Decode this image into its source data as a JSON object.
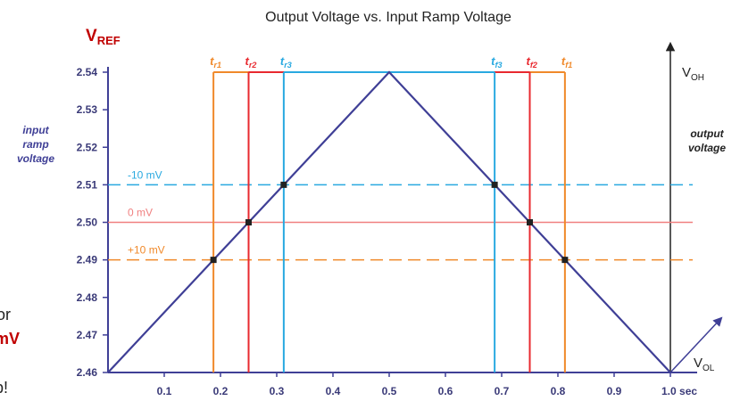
{
  "chart_data": {
    "type": "line",
    "title": "Output Voltage vs. Input Ramp Voltage",
    "vref_label": {
      "main": "V",
      "sub": "REF"
    },
    "input_axis_label": [
      "input",
      "ramp",
      "voltage"
    ],
    "output_axis_label": [
      "output",
      "voltage"
    ],
    "voh_label": {
      "main": "V",
      "sub": "OH"
    },
    "vol_label": {
      "main": "V",
      "sub": "OL"
    },
    "xlim": [
      0,
      1.0
    ],
    "ylim": [
      2.46,
      2.54
    ],
    "x_ticks": [
      {
        "value": 0.1,
        "label": "0.1"
      },
      {
        "value": 0.2,
        "label": "0.2"
      },
      {
        "value": 0.3,
        "label": "0.3"
      },
      {
        "value": 0.4,
        "label": "0.4"
      },
      {
        "value": 0.5,
        "label": "0.5"
      },
      {
        "value": 0.6,
        "label": "0.6"
      },
      {
        "value": 0.7,
        "label": "0.7"
      },
      {
        "value": 0.8,
        "label": "0.8"
      },
      {
        "value": 0.9,
        "label": "0.9"
      },
      {
        "value": 1.0,
        "label": "1.0 sec"
      }
    ],
    "y_ticks": [
      {
        "value": 2.46,
        "label": "2.46"
      },
      {
        "value": 2.47,
        "label": "2.47"
      },
      {
        "value": 2.48,
        "label": "2.48"
      },
      {
        "value": 2.49,
        "label": "2.49"
      },
      {
        "value": 2.5,
        "label": "2.50"
      },
      {
        "value": 2.51,
        "label": "2.51"
      },
      {
        "value": 2.52,
        "label": "2.52"
      },
      {
        "value": 2.53,
        "label": "2.53"
      },
      {
        "value": 2.54,
        "label": "2.54"
      }
    ],
    "ramp": {
      "x": [
        0,
        0.5,
        1.0
      ],
      "y": [
        2.46,
        2.54,
        2.46
      ],
      "color": "#3f3f96"
    },
    "thresholds": [
      {
        "label": "-10 mV",
        "y": 2.51,
        "color": "#29a9e0",
        "dashed": true
      },
      {
        "label": "0 mV",
        "y": 2.5,
        "color": "#f08080",
        "dashed": false
      },
      {
        "label": "+10 mV",
        "y": 2.49,
        "color": "#f0892a",
        "dashed": true
      }
    ],
    "output_pulses": [
      {
        "t_rise": 0.1875,
        "t_fall": 0.8125,
        "color": "#f0892a",
        "rise_label": "r1",
        "fall_label": "f1"
      },
      {
        "t_rise": 0.25,
        "t_fall": 0.75,
        "color": "#e8292f",
        "rise_label": "r2",
        "fall_label": "f2"
      },
      {
        "t_rise": 0.3125,
        "t_fall": 0.6875,
        "color": "#29a9e0",
        "rise_label": "r3",
        "fall_label": "f3"
      }
    ],
    "crossing_points": [
      {
        "x": 0.1875,
        "y": 2.49
      },
      {
        "x": 0.25,
        "y": 2.5
      },
      {
        "x": 0.3125,
        "y": 2.51
      },
      {
        "x": 0.6875,
        "y": 2.51
      },
      {
        "x": 0.75,
        "y": 2.5
      },
      {
        "x": 0.8125,
        "y": 2.49
      }
    ],
    "t_prefix": "t"
  },
  "left_edge_text": {
    "line1": "or",
    "line2": "mV",
    "line3": "p!"
  }
}
